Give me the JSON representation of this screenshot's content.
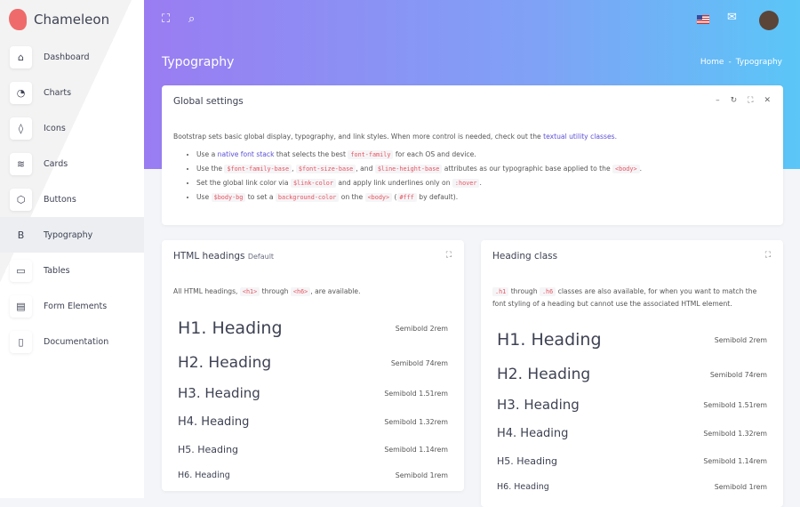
{
  "brand": "Chameleon",
  "sidebar": {
    "items": [
      {
        "label": "Dashboard",
        "icon": "home-icon",
        "glyph": "⌂"
      },
      {
        "label": "Charts",
        "icon": "pie-chart-icon",
        "glyph": "◔"
      },
      {
        "label": "Icons",
        "icon": "droplet-icon",
        "glyph": "◊"
      },
      {
        "label": "Cards",
        "icon": "layers-icon",
        "glyph": "≋"
      },
      {
        "label": "Buttons",
        "icon": "box-icon",
        "glyph": "⬡"
      },
      {
        "label": "Typography",
        "icon": "bold-icon",
        "glyph": "B"
      },
      {
        "label": "Tables",
        "icon": "credit-card-icon",
        "glyph": "▭"
      },
      {
        "label": "Form Elements",
        "icon": "layout-icon",
        "glyph": "▤"
      },
      {
        "label": "Documentation",
        "icon": "book-icon",
        "glyph": "▯"
      }
    ],
    "active": "Typography"
  },
  "header": {
    "title": "Typography",
    "breadcrumb": [
      "Home",
      "-",
      "Typography"
    ]
  },
  "global": {
    "title": "Global settings",
    "intro": "Bootstrap sets basic global display, typography, and link styles. When more control is needed, check out the ",
    "intro_link": "textual utility classes.",
    "b1": {
      "t1": "Use a ",
      "link": "native font stack",
      "t2": " that selects the best ",
      "c1": "font-family",
      "t3": " for each OS and device."
    },
    "b2": {
      "t1": "Use the ",
      "c1": "$font-family-base",
      "t2": ", ",
      "c2": "$font-size-base",
      "t3": ", and ",
      "c3": "$line-height-base",
      "t4": " attributes as our typographic base applied to the ",
      "c4": "<body>",
      "t5": "."
    },
    "b3": {
      "t1": "Set the global link color via ",
      "c1": "$link-color",
      "t2": " and apply link underlines only on ",
      "c2": ":hover",
      "t3": "."
    },
    "b4": {
      "t1": "Use ",
      "c1": "$body-bg",
      "t2": " to set a ",
      "c2": "background-color",
      "t3": " on the ",
      "c3": "<body>",
      "t4": " (",
      "c4": "#fff",
      "t5": " by default)."
    }
  },
  "html_headings": {
    "title": "HTML headings",
    "badge": "Default",
    "intro1": "All HTML headings, ",
    "c1": "<h1>",
    "intro2": " through ",
    "c2": "<h6>",
    "intro3": ", are available.",
    "rows": [
      {
        "label": "H1. Heading",
        "meta": "Semibold 2rem"
      },
      {
        "label": "H2. Heading",
        "meta": "Semibold 74rem"
      },
      {
        "label": "H3. Heading",
        "meta": "Semibold 1.51rem"
      },
      {
        "label": "H4. Heading",
        "meta": "Semibold 1.32rem"
      },
      {
        "label": "H5. Heading",
        "meta": "Semibold 1.14rem"
      },
      {
        "label": "H6. Heading",
        "meta": "Semibold 1rem"
      }
    ]
  },
  "heading_class": {
    "title": "Heading class",
    "c1": ".h1",
    "t1": " through ",
    "c2": ".h6",
    "t2": " classes are also available, for when you want to match the font styling of a heading but cannot use the associated HTML element.",
    "rows": [
      {
        "label": "H1. Heading",
        "meta": "Semibold 2rem"
      },
      {
        "label": "H2. Heading",
        "meta": "Semibold 74rem"
      },
      {
        "label": "H3. Heading",
        "meta": "Semibold 1.51rem"
      },
      {
        "label": "H4. Heading",
        "meta": "Semibold 1.32rem"
      },
      {
        "label": "H5. Heading",
        "meta": "Semibold 1.14rem"
      },
      {
        "label": "H6. Heading",
        "meta": "Semibold 1rem"
      }
    ]
  }
}
